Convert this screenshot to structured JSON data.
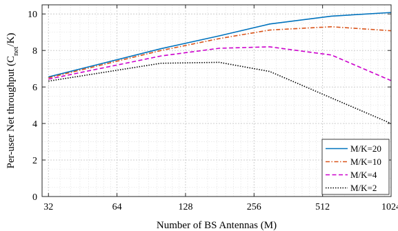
{
  "chart_data": {
    "type": "line",
    "xlabel": "Number of BS Antennas (M)",
    "ylabel_main": "Per-user Net throughput (C",
    "ylabel_sub": "net",
    "ylabel_end": "/K)",
    "x_scale": "log2",
    "xlim": [
      30,
      1024
    ],
    "ylim": [
      0,
      10.5
    ],
    "xticks": [
      32,
      64,
      128,
      256,
      512,
      1024
    ],
    "xtick_labels": [
      "32",
      "64",
      "128",
      "256",
      "512",
      "1024"
    ],
    "yticks": [
      0,
      2,
      4,
      6,
      8,
      10
    ],
    "ytick_labels": [
      "0",
      "2",
      "4",
      "6",
      "8",
      "10"
    ],
    "grid": true,
    "legend_position": "bottom-right",
    "series": [
      {
        "name": "M/K=20",
        "color": "#0072BD",
        "style": "solid",
        "x": [
          32,
          100,
          180,
          300,
          560,
          1024
        ],
        "y": [
          6.55,
          8.1,
          8.8,
          9.45,
          9.88,
          10.08
        ]
      },
      {
        "name": "M/K=10",
        "color": "#D95319",
        "style": "dashdot",
        "x": [
          32,
          100,
          180,
          300,
          560,
          1024
        ],
        "y": [
          6.5,
          8.0,
          8.65,
          9.12,
          9.3,
          9.08
        ]
      },
      {
        "name": "M/K=4",
        "color": "#CC00CC",
        "style": "dashed",
        "x": [
          32,
          100,
          180,
          300,
          560,
          1024
        ],
        "y": [
          6.43,
          7.7,
          8.12,
          8.2,
          7.75,
          6.35
        ]
      },
      {
        "name": "M/K=2",
        "color": "#000000",
        "style": "dotted",
        "x": [
          32,
          100,
          180,
          300,
          560,
          1024
        ],
        "y": [
          6.32,
          7.3,
          7.35,
          6.85,
          5.4,
          4.0
        ]
      }
    ]
  }
}
